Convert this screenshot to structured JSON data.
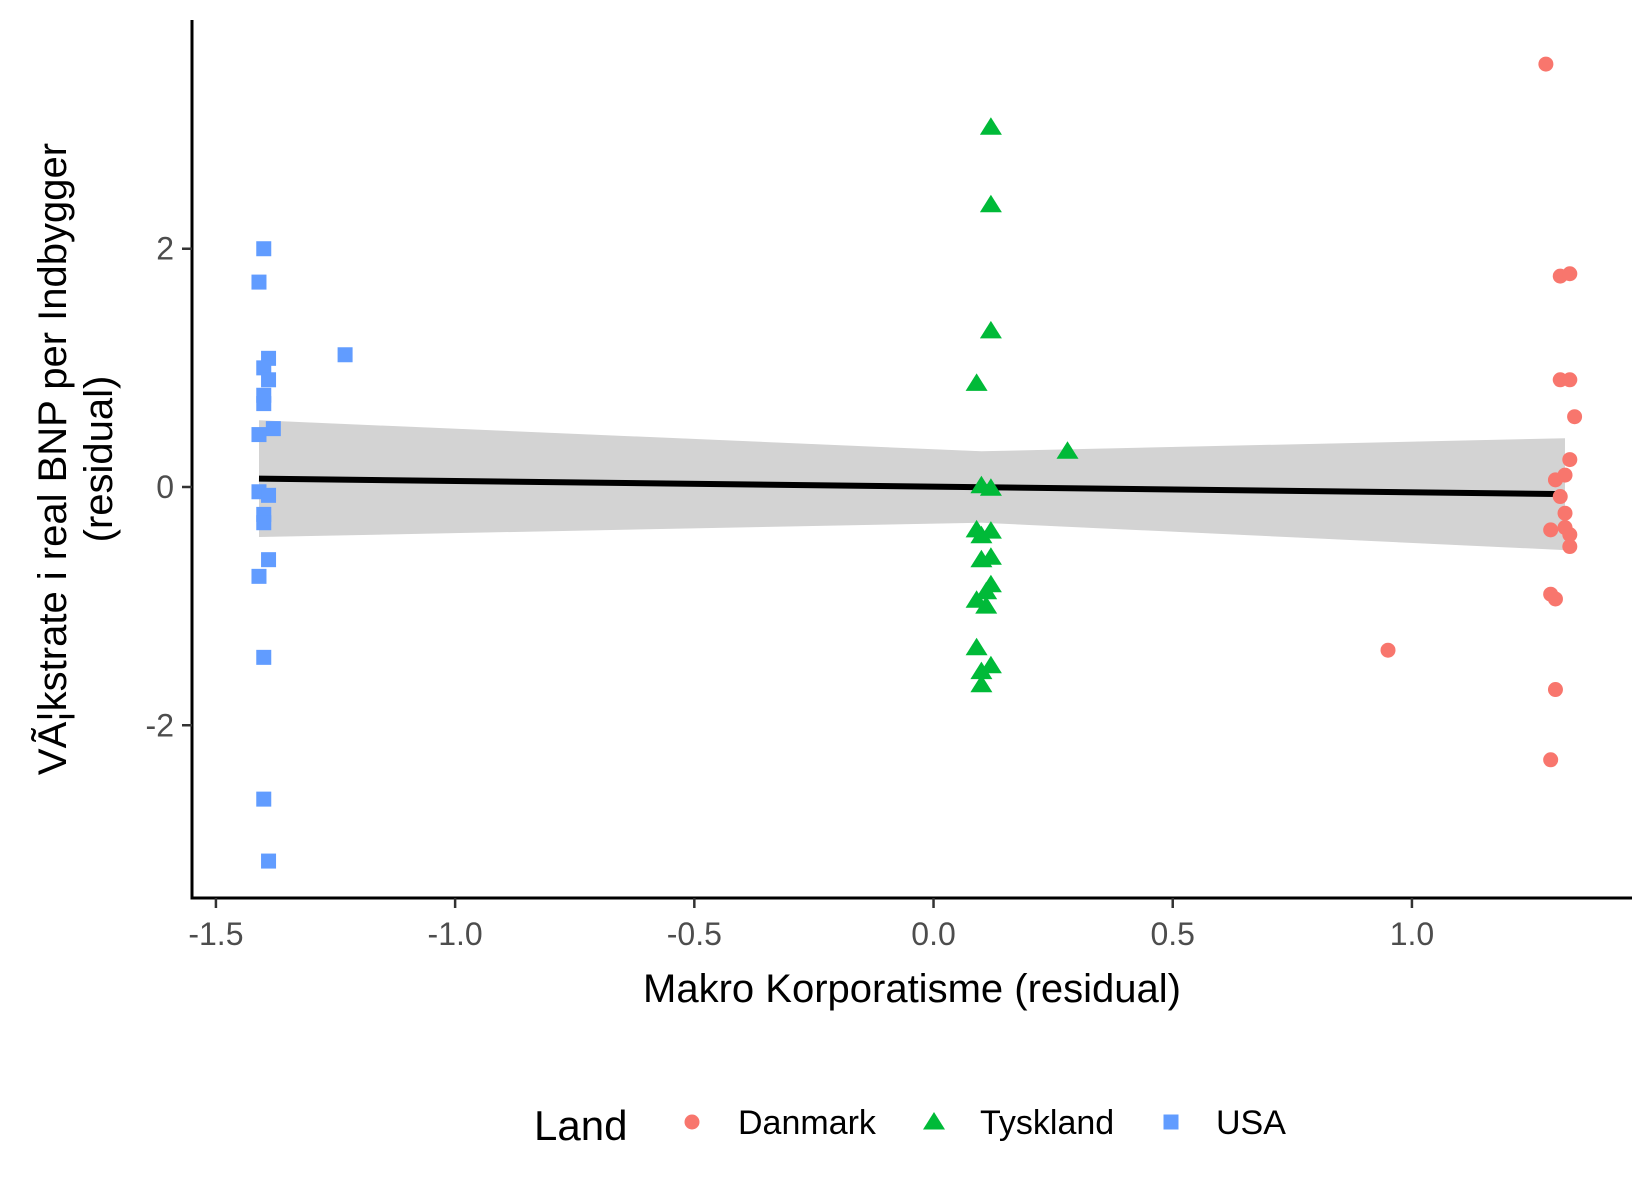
{
  "chart_data": {
    "type": "scatter",
    "xlabel": "Makro Korporatisme (residual)",
    "ylabel_lines": [
      "VÃ¦kstrate i real BNP per Indbygger",
      "(residual)"
    ],
    "xlim": [
      -1.55,
      1.46
    ],
    "ylim": [
      -3.45,
      3.92
    ],
    "x_ticks": [
      -1.5,
      -1.0,
      -0.5,
      0.0,
      0.5,
      1.0
    ],
    "x_tick_labels": [
      "-1.5",
      "-1.0",
      "-0.5",
      "0.0",
      "0.5",
      "1.0"
    ],
    "y_ticks": [
      -2,
      0,
      2
    ],
    "y_tick_labels": [
      "-2",
      "0",
      "2"
    ],
    "grid": false,
    "legend": {
      "title": "Land",
      "position": "bottom",
      "items": [
        {
          "label": "Danmark",
          "shape": "circle",
          "color": "#F8766D"
        },
        {
          "label": "Tyskland",
          "shape": "triangle",
          "color": "#00BA38"
        },
        {
          "label": "USA",
          "shape": "square",
          "color": "#619CFF"
        }
      ]
    },
    "regression": {
      "x": [
        -1.41,
        1.32
      ],
      "y": [
        0.07,
        -0.06
      ],
      "ci_upper": [
        0.56,
        0.41
      ],
      "ci_lower": [
        -0.42,
        -0.53
      ],
      "ci_mid": {
        "x": 0.1,
        "upper": 0.3,
        "lower": -0.3
      },
      "line_color": "#000000",
      "band_color": "#d3d3d3"
    },
    "series": [
      {
        "name": "Danmark",
        "shape": "circle",
        "color": "#F8766D",
        "points": [
          [
            1.28,
            3.55
          ],
          [
            1.31,
            1.77
          ],
          [
            1.33,
            1.79
          ],
          [
            1.31,
            0.9
          ],
          [
            1.33,
            0.9
          ],
          [
            1.34,
            0.59
          ],
          [
            1.33,
            0.23
          ],
          [
            1.3,
            0.06
          ],
          [
            1.32,
            0.1
          ],
          [
            1.31,
            -0.08
          ],
          [
            1.32,
            -0.22
          ],
          [
            1.29,
            -0.36
          ],
          [
            1.32,
            -0.34
          ],
          [
            1.33,
            -0.4
          ],
          [
            1.33,
            -0.5
          ],
          [
            1.29,
            -0.9
          ],
          [
            1.3,
            -0.94
          ],
          [
            0.95,
            -1.37
          ],
          [
            1.3,
            -1.7
          ],
          [
            1.29,
            -2.29
          ]
        ]
      },
      {
        "name": "Tyskland",
        "shape": "triangle",
        "color": "#00BA38",
        "points": [
          [
            0.12,
            3.02
          ],
          [
            0.12,
            2.37
          ],
          [
            0.12,
            1.31
          ],
          [
            0.09,
            0.87
          ],
          [
            0.28,
            0.3
          ],
          [
            0.1,
            0.01
          ],
          [
            0.12,
            -0.01
          ],
          [
            0.09,
            -0.36
          ],
          [
            0.12,
            -0.37
          ],
          [
            0.1,
            -0.41
          ],
          [
            0.1,
            -0.61
          ],
          [
            0.12,
            -0.59
          ],
          [
            0.12,
            -0.82
          ],
          [
            0.11,
            -0.88
          ],
          [
            0.09,
            -0.95
          ],
          [
            0.11,
            -1.0
          ],
          [
            0.09,
            -1.35
          ],
          [
            0.12,
            -1.5
          ],
          [
            0.1,
            -1.55
          ],
          [
            0.1,
            -1.66
          ]
        ]
      },
      {
        "name": "USA",
        "shape": "square",
        "color": "#619CFF",
        "points": [
          [
            -1.4,
            2.0
          ],
          [
            -1.41,
            1.72
          ],
          [
            -1.23,
            1.11
          ],
          [
            -1.39,
            1.08
          ],
          [
            -1.4,
            1.0
          ],
          [
            -1.39,
            0.9
          ],
          [
            -1.4,
            0.77
          ],
          [
            -1.4,
            0.7
          ],
          [
            -1.38,
            0.49
          ],
          [
            -1.41,
            0.44
          ],
          [
            -1.41,
            -0.04
          ],
          [
            -1.39,
            -0.07
          ],
          [
            -1.4,
            -0.23
          ],
          [
            -1.4,
            -0.3
          ],
          [
            -1.39,
            -0.61
          ],
          [
            -1.41,
            -0.75
          ],
          [
            -1.4,
            -1.43
          ],
          [
            -1.4,
            -2.62
          ],
          [
            -1.39,
            -3.14
          ]
        ]
      }
    ]
  }
}
